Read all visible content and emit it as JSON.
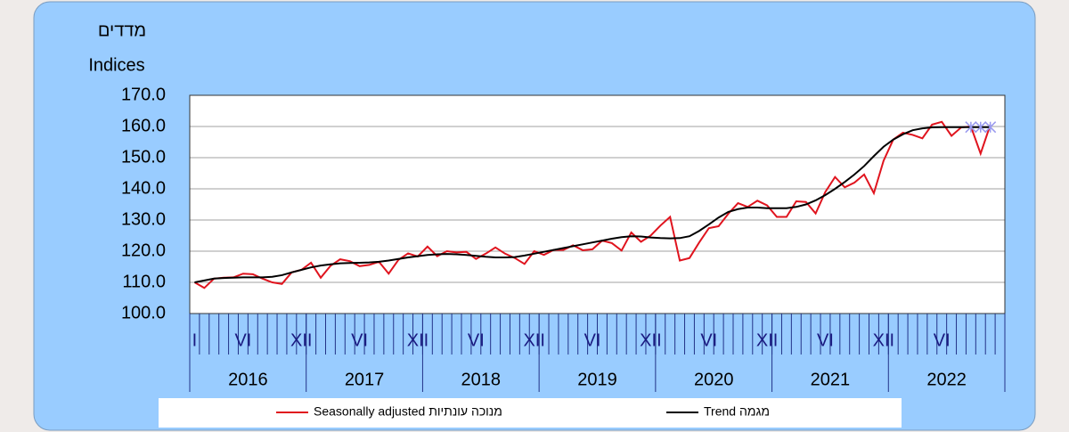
{
  "chart_data": {
    "type": "line",
    "title": "מדדים",
    "y_label": "Indices",
    "categories": [
      "I",
      null,
      null,
      null,
      null,
      "VI",
      null,
      null,
      null,
      null,
      null,
      "XII",
      null,
      null,
      null,
      null,
      null,
      "VI",
      null,
      null,
      null,
      null,
      null,
      "XII",
      null,
      null,
      null,
      null,
      null,
      "VI",
      null,
      null,
      null,
      null,
      null,
      "XII",
      null,
      null,
      null,
      null,
      null,
      "VI",
      null,
      null,
      null,
      null,
      null,
      "XII",
      null,
      null,
      null,
      null,
      null,
      "VI",
      null,
      null,
      null,
      null,
      null,
      "XII",
      null,
      null,
      null,
      null,
      null,
      "VI",
      null,
      null,
      null,
      null,
      null,
      "XII",
      null,
      null,
      null,
      null,
      null,
      "VI",
      null,
      null,
      null,
      null,
      null,
      null
    ],
    "years": [
      "2016",
      "2017",
      "2018",
      "2019",
      "2020",
      "2021",
      "2022"
    ],
    "series": [
      {
        "name": "Seasonally adjusted  מנוכה עונתיות",
        "color": "#e0141e",
        "values": [
          110.0,
          108.2,
          111.2,
          111.5,
          111.6,
          112.8,
          112.6,
          111.2,
          110.0,
          109.5,
          113.2,
          114.0,
          116.3,
          111.5,
          115.3,
          117.4,
          116.8,
          115.2,
          115.6,
          116.6,
          112.8,
          117.2,
          119.3,
          118.3,
          121.5,
          118.4,
          120.0,
          119.6,
          119.8,
          117.5,
          119.2,
          121.2,
          119.2,
          117.8,
          115.9,
          120.0,
          118.8,
          120.4,
          120.4,
          121.9,
          120.3,
          120.6,
          123.4,
          122.6,
          120.2,
          126.0,
          123.0,
          125.0,
          128.2,
          131.0,
          117.0,
          117.8,
          122.8,
          127.4,
          128.0,
          132.0,
          135.4,
          134.2,
          136.2,
          134.7,
          131.0,
          131.0,
          136.0,
          135.8,
          132.1,
          139.0,
          143.8,
          140.5,
          142.0,
          144.6,
          138.6,
          149.0,
          155.8,
          158.0,
          157.3,
          156.2,
          160.6,
          161.5,
          157.0,
          159.7,
          160.0,
          151.3,
          160.5,
          null
        ]
      },
      {
        "name": "Trend  מגמה",
        "color": "#000000",
        "values": [
          110.0,
          110.6,
          111.2,
          111.4,
          111.5,
          111.6,
          111.6,
          111.6,
          111.8,
          112.3,
          113.2,
          114.0,
          114.8,
          115.4,
          115.8,
          116.1,
          116.2,
          116.3,
          116.4,
          116.6,
          117.0,
          117.5,
          118.0,
          118.4,
          118.8,
          119.0,
          119.1,
          119.0,
          118.8,
          118.5,
          118.2,
          118.0,
          118.0,
          118.1,
          118.6,
          119.2,
          119.8,
          120.4,
          121.0,
          121.6,
          122.2,
          122.8,
          123.4,
          124.0,
          124.5,
          124.8,
          124.7,
          124.4,
          124.2,
          124.1,
          124.2,
          124.8,
          126.5,
          128.6,
          130.8,
          132.6,
          133.5,
          134.0,
          134.0,
          133.8,
          133.8,
          133.8,
          134.2,
          135.0,
          136.3,
          138.0,
          140.0,
          142.2,
          144.6,
          147.3,
          150.5,
          153.5,
          155.8,
          157.5,
          158.8,
          159.4,
          159.7,
          159.8,
          159.8,
          159.8,
          159.8,
          159.8,
          159.8,
          null
        ],
        "provisional_last": 3,
        "provisional_color": "#9999ee"
      }
    ],
    "ylim": [
      100,
      170
    ],
    "yticks": [
      {
        "value": 100,
        "label": "100.0"
      },
      {
        "value": 110,
        "label": "110.0"
      },
      {
        "value": 120,
        "label": "120.0"
      },
      {
        "value": 130,
        "label": "130.0"
      },
      {
        "value": 140,
        "label": "140.0"
      },
      {
        "value": 150,
        "label": "150.0"
      },
      {
        "value": 160,
        "label": "160.0"
      },
      {
        "value": 170,
        "label": "170.0"
      }
    ],
    "grid": true
  }
}
